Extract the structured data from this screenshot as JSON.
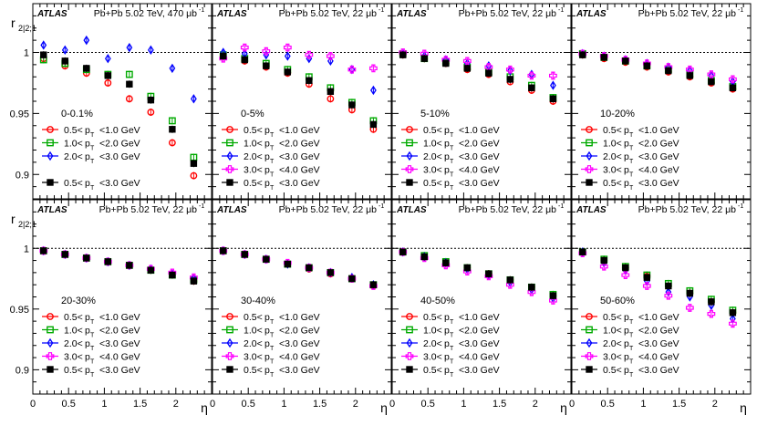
{
  "chart_data": {
    "type": "scatter",
    "title": "",
    "ylabel_main": "r",
    "ylabel_sub": "2|2;1",
    "xlabel": "η",
    "ylim": [
      0.88,
      1.04
    ],
    "xlim": [
      0,
      2.5
    ],
    "x_ticks": [
      "0",
      "0.5",
      "1",
      "1.5",
      "2"
    ],
    "y_ticks": [
      "0.9",
      "0.95",
      "1"
    ],
    "x_values": [
      0.15,
      0.45,
      0.75,
      1.05,
      1.35,
      1.65,
      1.95,
      2.25
    ],
    "series_styles": [
      {
        "name": "0.5< pT <1.0 GeV",
        "label_lo": "0.5<",
        "label_hi": "<1.0 GeV",
        "color": "#ff0000",
        "marker": "open-circle"
      },
      {
        "name": "1.0< pT <2.0 GeV",
        "label_lo": "1.0<",
        "label_hi": "<2.0 GeV",
        "color": "#00aa00",
        "marker": "open-square"
      },
      {
        "name": "2.0< pT <3.0 GeV",
        "label_lo": "2.0<",
        "label_hi": "<3.0 GeV",
        "color": "#0000ff",
        "marker": "open-diamond"
      },
      {
        "name": "3.0< pT <4.0 GeV",
        "label_lo": "3.0<",
        "label_hi": "<4.0 GeV",
        "color": "#ff00ff",
        "marker": "open-cross"
      },
      {
        "name": "0.5< pT <3.0 GeV",
        "label_lo": "0.5<",
        "label_hi": "<3.0 GeV",
        "color": "#000000",
        "marker": "filled-square"
      }
    ],
    "panels": [
      {
        "atlas": "ATLAS",
        "header": "Pb+Pb 5.02 TeV, 470 μb",
        "header_sup": "-1",
        "centrality": "0-0.1%",
        "legend_series": [
          0,
          1,
          2,
          4
        ],
        "series": [
          {
            "values": [
              0.995,
              0.989,
              0.983,
              0.975,
              0.962,
              0.951,
              0.926,
              0.899
            ]
          },
          {
            "values": [
              0.994,
              0.991,
              0.986,
              0.982,
              0.982,
              0.964,
              0.944,
              0.914
            ]
          },
          {
            "values": [
              1.006,
              1.002,
              1.01,
              0.995,
              1.004,
              1.002,
              0.987,
              0.962
            ]
          },
          null,
          {
            "values": [
              0.998,
              0.993,
              0.987,
              0.981,
              0.974,
              0.961,
              0.937,
              0.909
            ]
          }
        ]
      },
      {
        "atlas": "ATLAS",
        "header": "Pb+Pb 5.02 TeV, 22 μb",
        "header_sup": "-1",
        "centrality": "0-5%",
        "legend_series": [
          0,
          1,
          2,
          3,
          4
        ],
        "series": [
          {
            "values": [
              0.997,
              0.993,
              0.988,
              0.983,
              0.974,
              0.962,
              0.953,
              0.937
            ]
          },
          {
            "values": [
              0.998,
              0.995,
              0.991,
              0.986,
              0.98,
              0.971,
              0.959,
              0.944
            ]
          },
          {
            "values": [
              1.0,
              0.999,
              0.998,
              0.997,
              0.995,
              0.993,
              0.986,
              0.969
            ]
          },
          {
            "values": [
              0.995,
              1.004,
              1.001,
              1.004,
              0.998,
              0.997,
              0.986,
              0.987
            ]
          },
          {
            "values": [
              0.997,
              0.994,
              0.989,
              0.984,
              0.977,
              0.968,
              0.957,
              0.941
            ]
          }
        ]
      },
      {
        "atlas": "ATLAS",
        "header": "Pb+Pb 5.02 TeV, 22 μb",
        "header_sup": "-1",
        "centrality": "5-10%",
        "legend_series": [
          0,
          1,
          2,
          3,
          4
        ],
        "series": [
          {
            "values": [
              0.998,
              0.995,
              0.991,
              0.986,
              0.982,
              0.976,
              0.969,
              0.96
            ]
          },
          {
            "values": [
              0.999,
              0.995,
              0.992,
              0.988,
              0.984,
              0.98,
              0.973,
              0.963
            ]
          },
          {
            "values": [
              0.999,
              0.997,
              0.994,
              0.991,
              0.989,
              0.985,
              0.982,
              0.973
            ]
          },
          {
            "values": [
              1.0,
              0.999,
              0.994,
              0.993,
              0.988,
              0.986,
              0.981,
              0.981
            ]
          },
          {
            "values": [
              0.998,
              0.995,
              0.991,
              0.987,
              0.983,
              0.978,
              0.971,
              0.962
            ]
          }
        ]
      },
      {
        "atlas": "ATLAS",
        "header": "Pb+Pb 5.02 TeV, 22 μb",
        "header_sup": "-1",
        "centrality": "10-20%",
        "legend_series": [
          0,
          1,
          2,
          3,
          4
        ],
        "series": [
          {
            "values": [
              0.998,
              0.995,
              0.992,
              0.988,
              0.984,
              0.98,
              0.975,
              0.97
            ]
          },
          {
            "values": [
              0.999,
              0.996,
              0.993,
              0.989,
              0.986,
              0.982,
              0.977,
              0.972
            ]
          },
          {
            "values": [
              0.999,
              0.997,
              0.994,
              0.991,
              0.988,
              0.985,
              0.981,
              0.976
            ]
          },
          {
            "values": [
              0.999,
              0.997,
              0.994,
              0.991,
              0.988,
              0.986,
              0.982,
              0.978
            ]
          },
          {
            "values": [
              0.998,
              0.996,
              0.993,
              0.989,
              0.985,
              0.981,
              0.976,
              0.971
            ]
          }
        ]
      },
      {
        "atlas": "ATLAS",
        "header": "Pb+Pb 5.02 TeV, 22 μb",
        "header_sup": "-1",
        "centrality": "20-30%",
        "legend_series": [
          0,
          1,
          2,
          3,
          4
        ],
        "series": [
          {
            "values": [
              0.998,
              0.995,
              0.992,
              0.989,
              0.986,
              0.982,
              0.978,
              0.973
            ]
          },
          {
            "values": [
              0.998,
              0.995,
              0.992,
              0.989,
              0.986,
              0.982,
              0.978,
              0.974
            ]
          },
          {
            "values": [
              0.998,
              0.995,
              0.992,
              0.989,
              0.986,
              0.983,
              0.979,
              0.975
            ]
          },
          {
            "values": [
              0.998,
              0.995,
              0.992,
              0.989,
              0.986,
              0.983,
              0.98,
              0.976
            ]
          },
          {
            "values": [
              0.998,
              0.995,
              0.992,
              0.989,
              0.986,
              0.982,
              0.978,
              0.973
            ]
          }
        ]
      },
      {
        "atlas": "ATLAS",
        "header": "Pb+Pb 5.02 TeV, 22 μb",
        "header_sup": "-1",
        "centrality": "30-40%",
        "legend_series": [
          0,
          1,
          2,
          3,
          4
        ],
        "series": [
          {
            "values": [
              0.998,
              0.995,
              0.991,
              0.987,
              0.983,
              0.979,
              0.975,
              0.969
            ]
          },
          {
            "values": [
              0.998,
              0.995,
              0.991,
              0.987,
              0.984,
              0.98,
              0.975,
              0.97
            ]
          },
          {
            "values": [
              0.998,
              0.995,
              0.991,
              0.987,
              0.984,
              0.98,
              0.976,
              0.97
            ]
          },
          {
            "values": [
              0.998,
              0.995,
              0.991,
              0.988,
              0.984,
              0.98,
              0.975,
              0.969
            ]
          },
          {
            "values": [
              0.998,
              0.995,
              0.991,
              0.987,
              0.984,
              0.98,
              0.975,
              0.97
            ]
          }
        ]
      },
      {
        "atlas": "ATLAS",
        "header": "Pb+Pb 5.02 TeV, 22 μb",
        "header_sup": "-1",
        "centrality": "40-50%",
        "legend_series": [
          0,
          1,
          2,
          3,
          4
        ],
        "series": [
          {
            "values": [
              0.997,
              0.993,
              0.988,
              0.984,
              0.979,
              0.974,
              0.968,
              0.961
            ]
          },
          {
            "values": [
              0.997,
              0.994,
              0.989,
              0.984,
              0.979,
              0.974,
              0.968,
              0.962
            ]
          },
          {
            "values": [
              0.997,
              0.993,
              0.988,
              0.983,
              0.978,
              0.972,
              0.966,
              0.959
            ]
          },
          {
            "values": [
              0.997,
              0.992,
              0.986,
              0.981,
              0.977,
              0.97,
              0.964,
              0.957
            ]
          },
          {
            "values": [
              0.997,
              0.993,
              0.988,
              0.984,
              0.979,
              0.974,
              0.968,
              0.961
            ]
          }
        ]
      },
      {
        "atlas": "ATLAS",
        "header": "Pb+Pb 5.02 TeV, 22 μb",
        "header_sup": "-1",
        "centrality": "50-60%",
        "legend_series": [
          0,
          1,
          2,
          3,
          4
        ],
        "series": [
          {
            "values": [
              0.997,
              0.99,
              0.984,
              0.977,
              0.969,
              0.963,
              0.956,
              0.947
            ]
          },
          {
            "values": [
              0.997,
              0.991,
              0.985,
              0.978,
              0.971,
              0.965,
              0.958,
              0.949
            ]
          },
          {
            "values": [
              0.997,
              0.988,
              0.982,
              0.973,
              0.964,
              0.96,
              0.953,
              0.942
            ]
          },
          {
            "values": [
              0.996,
              0.985,
              0.978,
              0.969,
              0.961,
              0.951,
              0.946,
              0.938
            ]
          },
          {
            "values": [
              0.997,
              0.99,
              0.984,
              0.976,
              0.969,
              0.963,
              0.956,
              0.947
            ]
          }
        ]
      }
    ]
  }
}
